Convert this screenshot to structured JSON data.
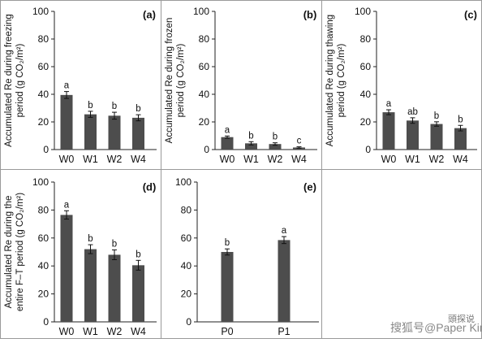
{
  "chart_data": [
    {
      "type": "bar",
      "panel": "(a)",
      "ylabel_lines": [
        "Accumulated Re during freezing",
        "period (g CO₂/m²)"
      ],
      "categories": [
        "W0",
        "W1",
        "W2",
        "W4"
      ],
      "values": [
        39.5,
        25.5,
        24.5,
        23
      ],
      "errors": [
        2.5,
        2.2,
        2.5,
        2.2
      ],
      "letters": [
        "a",
        "b",
        "b",
        "b"
      ],
      "ylim": [
        0,
        100
      ],
      "yticks": [
        "0",
        "20",
        "40",
        "60",
        "80",
        "100"
      ]
    },
    {
      "type": "bar",
      "panel": "(b)",
      "ylabel_lines": [
        "Accumulated Re during frozen",
        "period (g CO₂/m²)"
      ],
      "categories": [
        "W0",
        "W1",
        "W2",
        "W4"
      ],
      "values": [
        9,
        4.5,
        4,
        1.5
      ],
      "errors": [
        0.8,
        1.2,
        0.9,
        0.5
      ],
      "letters": [
        "a",
        "b",
        "b",
        "c"
      ],
      "ylim": [
        0,
        100
      ],
      "yticks": [
        "0",
        "20",
        "40",
        "60",
        "80",
        "100"
      ]
    },
    {
      "type": "bar",
      "panel": "(c)",
      "ylabel_lines": [
        "Accumulated Re during thawing",
        "period (g CO₂/m²)"
      ],
      "categories": [
        "W0",
        "W1",
        "W2",
        "W4"
      ],
      "values": [
        27,
        21,
        18.5,
        15.5
      ],
      "errors": [
        1.8,
        2,
        1.6,
        2
      ],
      "letters": [
        "a",
        "ab",
        "b",
        "b"
      ],
      "ylim": [
        0,
        100
      ],
      "yticks": [
        "0",
        "20",
        "40",
        "60",
        "80",
        "100"
      ]
    },
    {
      "type": "bar",
      "panel": "(d)",
      "ylabel_lines": [
        "Accumulated Re during the",
        "entire F–T period (g CO₂/m²)"
      ],
      "categories": [
        "W0",
        "W1",
        "W2",
        "W4"
      ],
      "values": [
        76.5,
        52,
        48,
        40.5
      ],
      "errors": [
        3,
        3.2,
        3.5,
        3.5
      ],
      "letters": [
        "a",
        "b",
        "b",
        "b"
      ],
      "ylim": [
        0,
        100
      ],
      "yticks": [
        "0",
        "20",
        "40",
        "60",
        "80",
        "100"
      ]
    },
    {
      "type": "bar",
      "panel": "(e)",
      "ylabel_lines": [],
      "categories": [
        "P0",
        "P1"
      ],
      "values": [
        50,
        58.5
      ],
      "errors": [
        2.2,
        2.5
      ],
      "letters": [
        "b",
        "a"
      ],
      "ylim": [
        0,
        100
      ],
      "yticks": [
        "0",
        "20",
        "40",
        "60",
        "80",
        "100"
      ]
    }
  ],
  "watermark": {
    "text": "搜狐号@Paper King",
    "corner": "頭探说"
  },
  "colors": {
    "bar": "#4d4d4d",
    "border": "#9a9a9a"
  }
}
